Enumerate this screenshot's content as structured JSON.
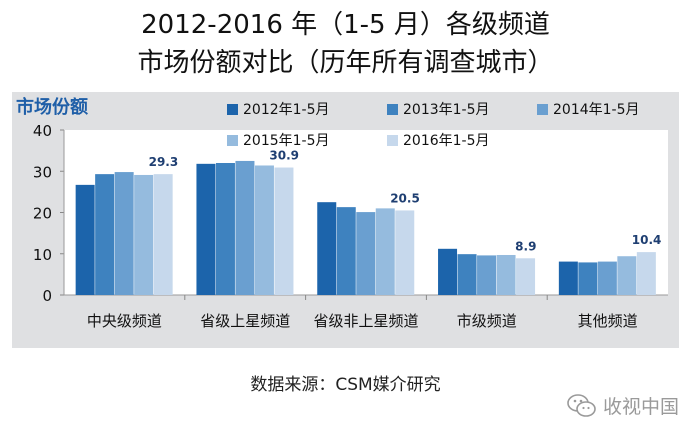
{
  "page": {
    "title_line_1": "2012-2016 年（1-5 月）各级频道",
    "title_line_2": "市场份额对比（历年所有调查城市）",
    "source": "数据来源：CSM媒介研究",
    "watermark": "收视中国",
    "watermark_icon": "wechat-icon"
  },
  "colors": {
    "panel_bg": "#dfe0e2",
    "plot_bg": "#ffffff",
    "axis_label": "#1f5fa8",
    "series": [
      "#1c64ab",
      "#3e82bf",
      "#6a9fd0",
      "#95bbde",
      "#c6d8ec"
    ]
  },
  "chart_data": {
    "type": "bar",
    "ylabel": "市场份额",
    "ylim": [
      0,
      40
    ],
    "yticks": [
      0,
      10,
      20,
      30,
      40
    ],
    "grid": false,
    "legend_position": "top-right",
    "categories": [
      "中央级频道",
      "省级上星频道",
      "省级非上星频道",
      "市级频道",
      "其他频道"
    ],
    "series": [
      {
        "name": "2012年1-5月",
        "values": [
          26.7,
          31.8,
          22.5,
          11.2,
          8.1
        ]
      },
      {
        "name": "2013年1-5月",
        "values": [
          29.3,
          32.0,
          21.3,
          9.9,
          7.9
        ]
      },
      {
        "name": "2014年1-5月",
        "values": [
          29.8,
          32.5,
          20.1,
          9.6,
          8.1
        ]
      },
      {
        "name": "2015年1-5月",
        "values": [
          29.1,
          31.4,
          21.0,
          9.7,
          9.4
        ]
      },
      {
        "name": "2016年1-5月",
        "values": [
          29.3,
          30.9,
          20.5,
          8.9,
          10.4
        ]
      }
    ],
    "annotations": [
      {
        "category": "中央级频道",
        "text": "29.3"
      },
      {
        "category": "省级上星频道",
        "text": "30.9"
      },
      {
        "category": "省级非上星频道",
        "text": "20.5"
      },
      {
        "category": "市级频道",
        "text": "8.9"
      },
      {
        "category": "其他频道",
        "text": "10.4"
      }
    ]
  }
}
